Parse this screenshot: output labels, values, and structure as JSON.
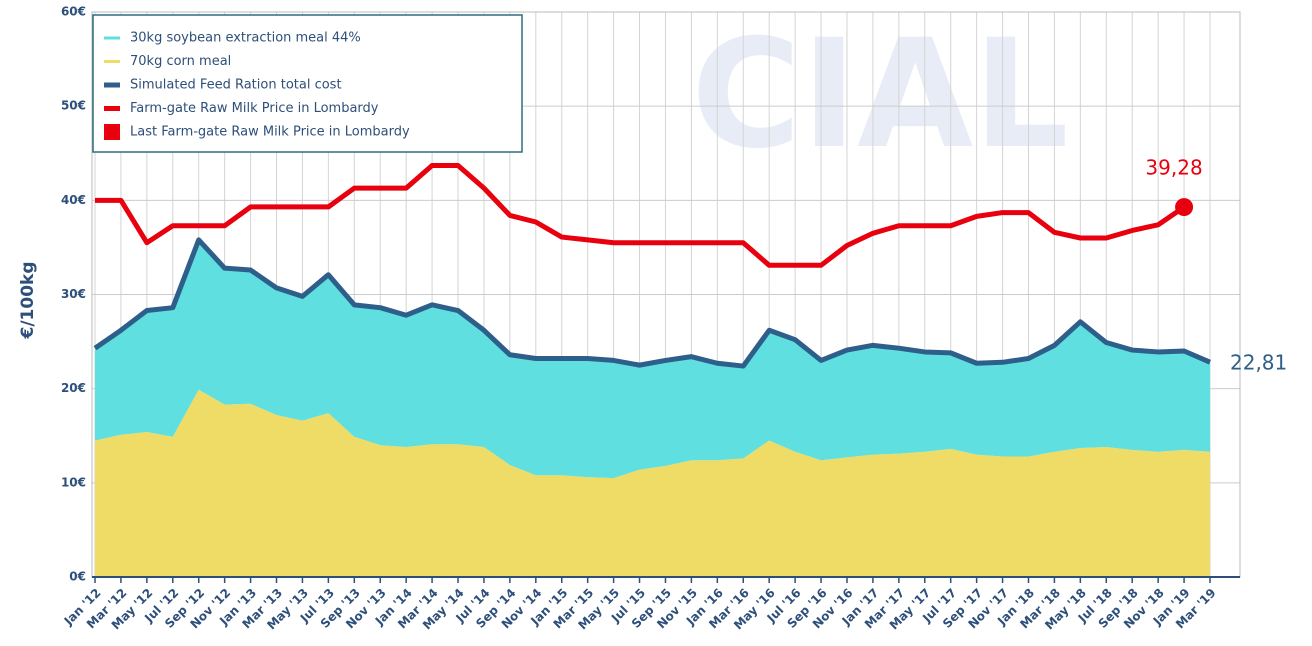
{
  "chart_data": {
    "type": "stacked_area_line",
    "watermark": "CIAL",
    "ylabel": "€/100kg",
    "categories": [
      "Jan '12",
      "Mar '12",
      "May '12",
      "Jul '12",
      "Sep '12",
      "Nov '12",
      "Jan '13",
      "Mar '13",
      "May '13",
      "Jul '13",
      "Sep '13",
      "Nov '13",
      "Jan '14",
      "Mar '14",
      "May '14",
      "Jul '14",
      "Sep '14",
      "Nov '14",
      "Jan '15",
      "Mar '15",
      "May '15",
      "Jul '15",
      "Sep '15",
      "Nov '15",
      "Jan '16",
      "Mar '16",
      "May '16",
      "Jul '16",
      "Sep '16",
      "Nov '16",
      "Jan '17",
      "Mar '17",
      "May '17",
      "Jul '17",
      "Sep '17",
      "Nov '17",
      "Jan '18",
      "Mar '18",
      "May '18",
      "Jul '18",
      "Sep '18",
      "Nov '18",
      "Jan '19",
      "Mar '19"
    ],
    "ylim": [
      0,
      60
    ],
    "yticks": [
      {
        "value": 0,
        "label": "0€"
      },
      {
        "value": 10,
        "label": "10€"
      },
      {
        "value": 20,
        "label": "20€"
      },
      {
        "value": 30,
        "label": "30€"
      },
      {
        "value": 40,
        "label": "40€"
      },
      {
        "value": 50,
        "label": "50€"
      },
      {
        "value": 60,
        "label": "60€"
      }
    ],
    "grid": true,
    "legend": "upper left",
    "series": [
      {
        "name": "30kg soybean extraction meal 44%",
        "color": "#5fdfe0",
        "kind": "stacked_area",
        "values": [
          9.8,
          11.1,
          12.9,
          13.7,
          15.9,
          14.5,
          14.2,
          13.5,
          13.2,
          14.7,
          14.0,
          14.6,
          14.0,
          14.8,
          14.2,
          12.4,
          11.7,
          12.4,
          12.4,
          12.6,
          12.5,
          11.1,
          11.2,
          11.0,
          10.3,
          9.8,
          11.7,
          11.9,
          10.6,
          11.4,
          11.6,
          11.2,
          10.6,
          10.2,
          9.7,
          10.0,
          10.4,
          11.3,
          13.4,
          11.1,
          10.6,
          10.6,
          10.5,
          9.51
        ]
      },
      {
        "name": "70kg corn meal",
        "color": "#eedc66",
        "kind": "stacked_area",
        "values": [
          14.5,
          15.1,
          15.4,
          14.9,
          19.9,
          18.3,
          18.4,
          17.2,
          16.6,
          17.4,
          14.9,
          14.0,
          13.8,
          14.1,
          14.1,
          13.8,
          11.9,
          10.8,
          10.8,
          10.6,
          10.5,
          11.4,
          11.8,
          12.4,
          12.4,
          12.6,
          14.5,
          13.3,
          12.4,
          12.7,
          13.0,
          13.1,
          13.3,
          13.6,
          13.0,
          12.8,
          12.8,
          13.3,
          13.7,
          13.8,
          13.5,
          13.3,
          13.5,
          13.3
        ]
      },
      {
        "name": "Simulated Feed Ration total cost",
        "color": "#2e5f8a",
        "kind": "line",
        "values": [
          24.3,
          26.2,
          28.3,
          28.6,
          35.8,
          32.8,
          32.6,
          30.7,
          29.8,
          32.1,
          28.9,
          28.6,
          27.8,
          28.9,
          28.3,
          26.2,
          23.6,
          23.2,
          23.2,
          23.2,
          23.0,
          22.5,
          23.0,
          23.4,
          22.7,
          22.4,
          26.2,
          25.2,
          23.0,
          24.1,
          24.6,
          24.3,
          23.9,
          23.8,
          22.7,
          22.8,
          23.2,
          24.6,
          27.1,
          24.9,
          24.1,
          23.9,
          24.0,
          22.81
        ],
        "value_labels": [
          null,
          null,
          null,
          null,
          null,
          null,
          null,
          null,
          null,
          null,
          null,
          null,
          null,
          null,
          null,
          null,
          null,
          null,
          null,
          null,
          null,
          null,
          null,
          null,
          null,
          null,
          null,
          null,
          null,
          null,
          null,
          null,
          null,
          null,
          null,
          null,
          null,
          null,
          null,
          null,
          null,
          null,
          null,
          "22,81"
        ]
      },
      {
        "name": "Farm-gate Raw Milk Price in Lombardy",
        "color": "#e8000e",
        "kind": "line",
        "values": [
          40.0,
          40.0,
          35.5,
          37.3,
          37.3,
          37.3,
          39.3,
          39.3,
          39.3,
          39.3,
          41.3,
          41.3,
          41.3,
          43.7,
          43.7,
          41.3,
          38.4,
          37.7,
          36.1,
          35.8,
          35.5,
          35.5,
          35.5,
          35.5,
          35.5,
          35.5,
          33.1,
          33.1,
          33.1,
          35.2,
          36.5,
          37.3,
          37.3,
          37.3,
          38.3,
          38.7,
          38.7,
          36.6,
          36.0,
          36.0,
          36.8,
          37.4,
          39.28,
          null
        ]
      },
      {
        "name": "Last Farm-gate Raw Milk Price in Lombardy",
        "color": "#e8000e",
        "kind": "point",
        "values": [
          null,
          null,
          null,
          null,
          null,
          null,
          null,
          null,
          null,
          null,
          null,
          null,
          null,
          null,
          null,
          null,
          null,
          null,
          null,
          null,
          null,
          null,
          null,
          null,
          null,
          null,
          null,
          null,
          null,
          null,
          null,
          null,
          null,
          null,
          null,
          null,
          null,
          null,
          null,
          null,
          null,
          null,
          39.28,
          null
        ],
        "value_labels": [
          null,
          null,
          null,
          null,
          null,
          null,
          null,
          null,
          null,
          null,
          null,
          null,
          null,
          null,
          null,
          null,
          null,
          null,
          null,
          null,
          null,
          null,
          null,
          null,
          null,
          null,
          null,
          null,
          null,
          null,
          null,
          null,
          null,
          null,
          null,
          null,
          null,
          null,
          null,
          null,
          null,
          null,
          "39,28",
          null
        ]
      }
    ]
  }
}
